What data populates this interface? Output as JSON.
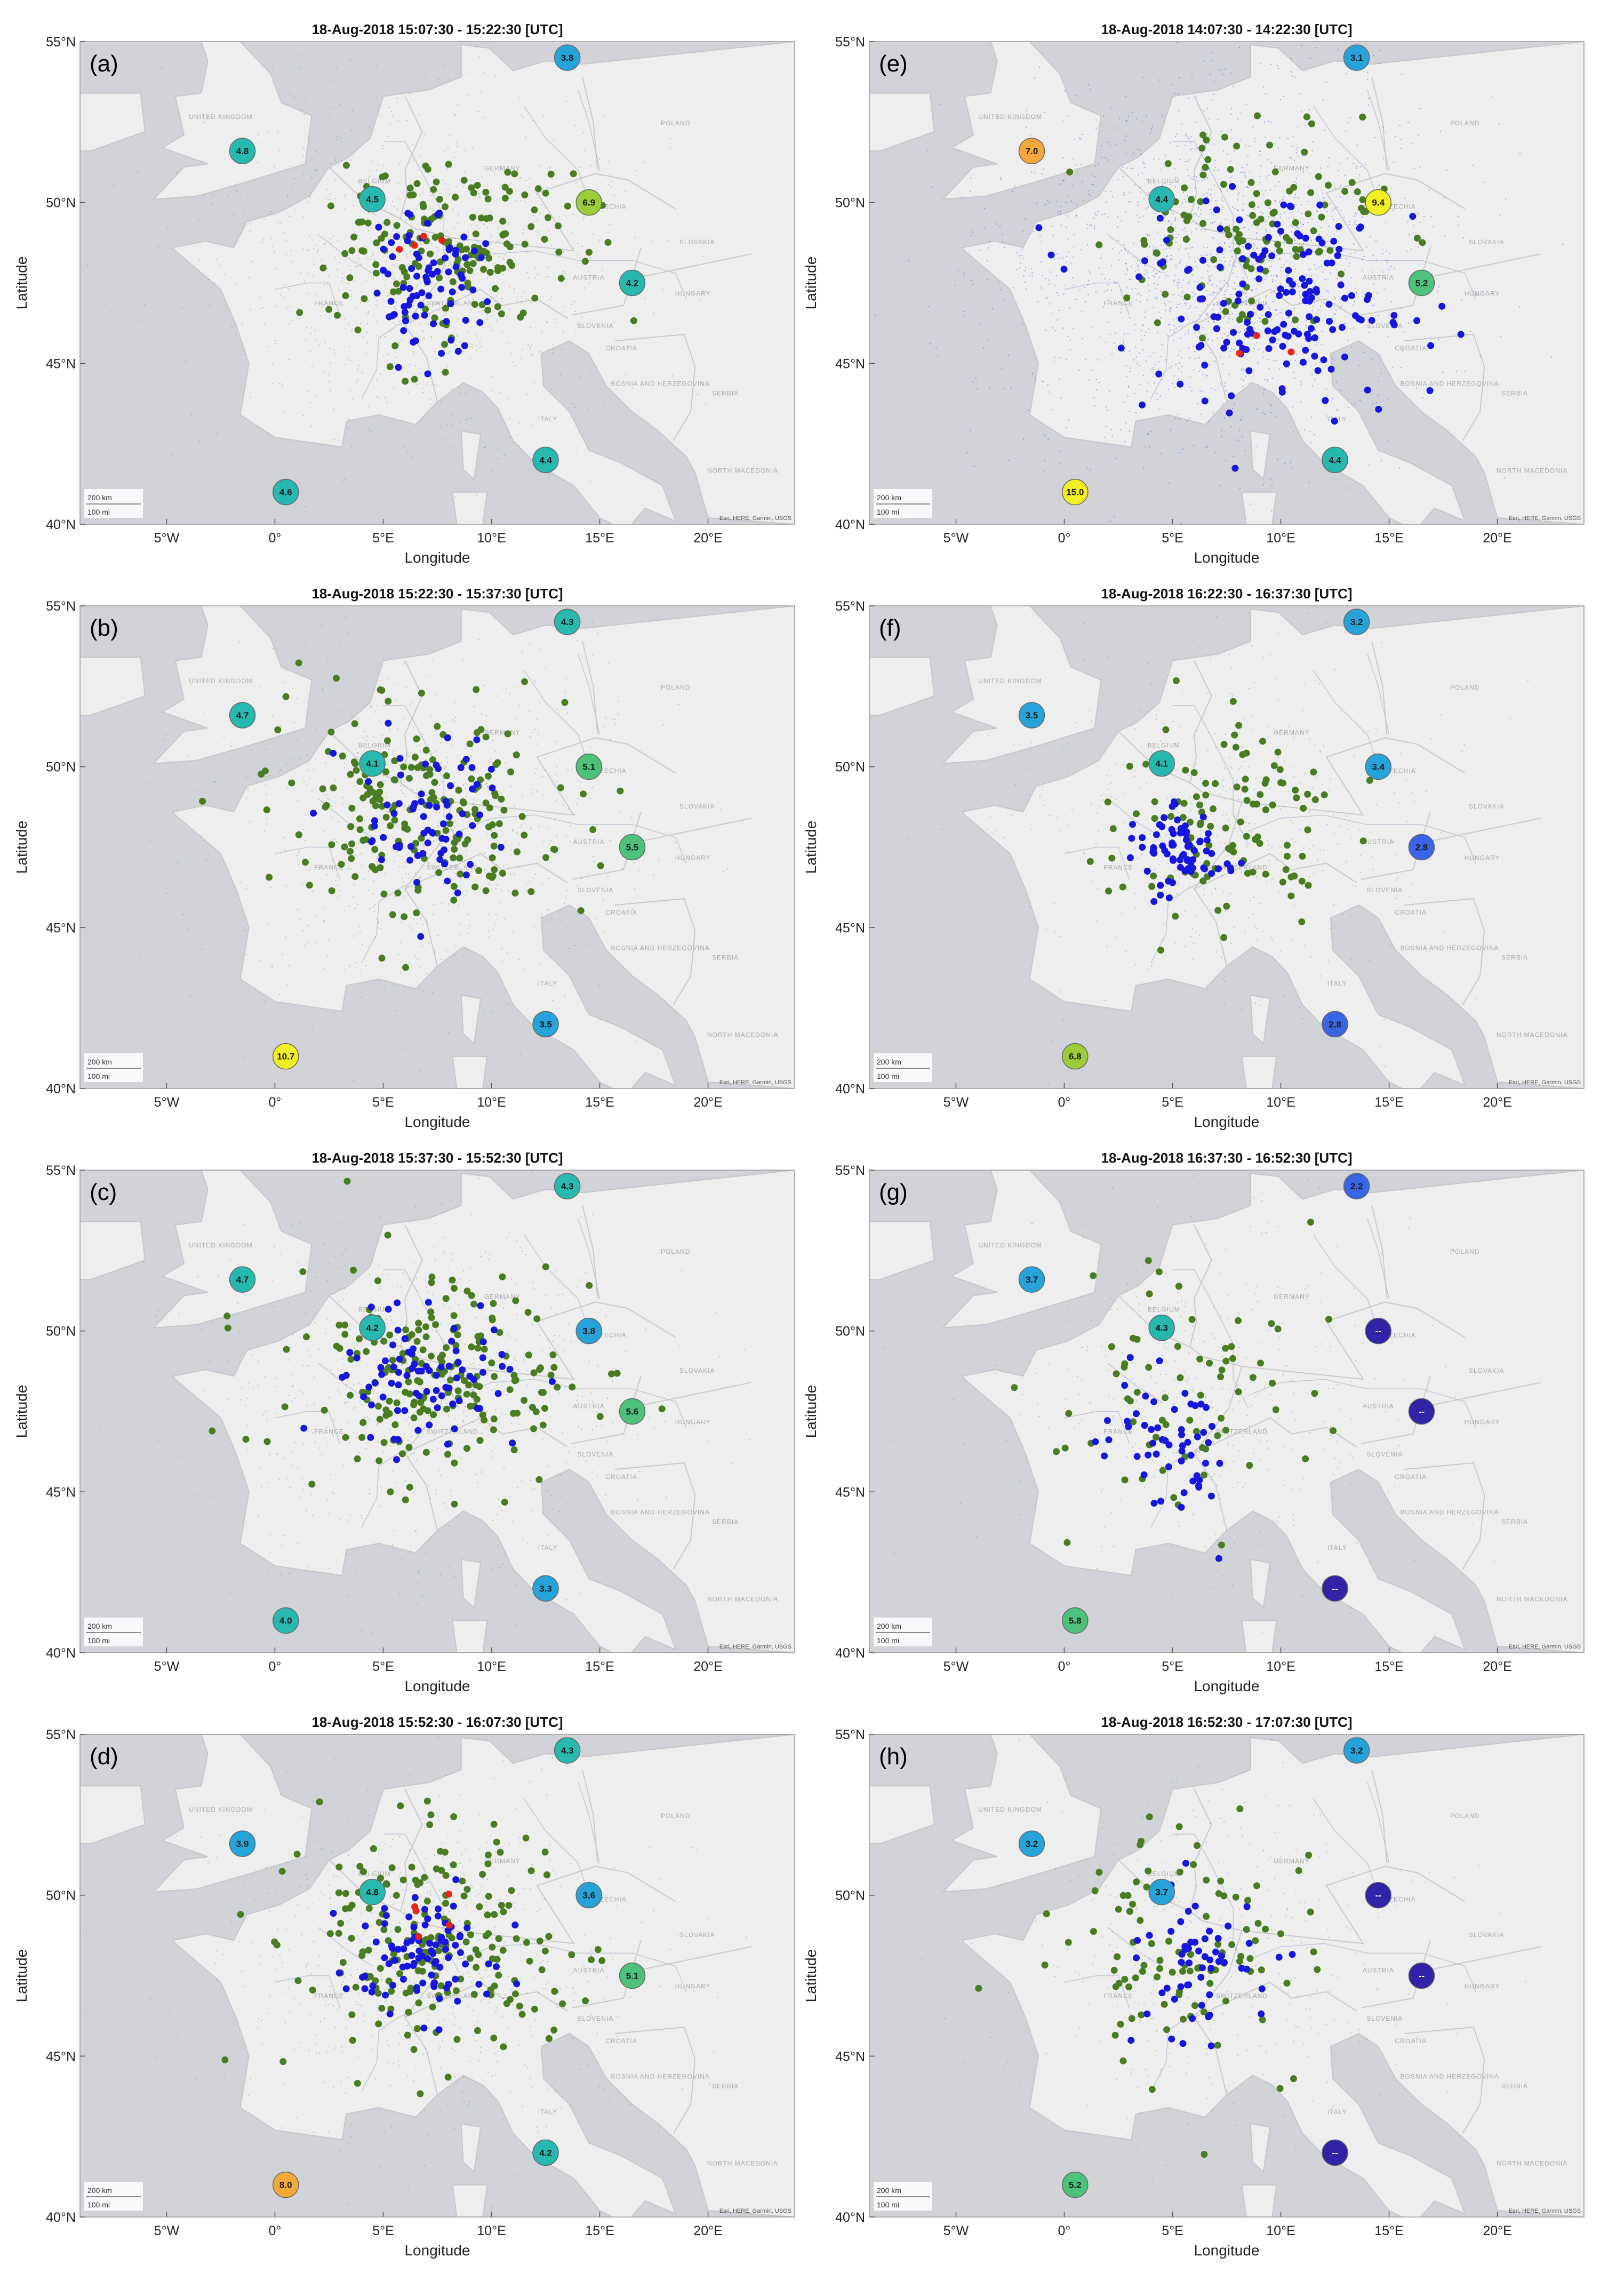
{
  "figure": {
    "x_axis_label": "Longitude",
    "y_axis_label": "Latitude",
    "x_ticks": [
      "5°W",
      "0°",
      "5°E",
      "10°E",
      "15°E",
      "20°E"
    ],
    "y_ticks": [
      "40°N",
      "45°N",
      "50°N",
      "55°N"
    ],
    "scale_bar": {
      "km": "200 km",
      "mi": "100 mi"
    },
    "attribution": "Esri, HERE, Garmin, USGS",
    "map_labels": [
      "POLAND",
      "GERMANY",
      "FRANCE",
      "SWITZERLAND",
      "ITALY",
      "SLOVENIA",
      "SERBIA",
      "BOSNIA AND HERZEGOVINA",
      "NORTH MACEDONIA",
      "CROATIA",
      "UNITED KINGDOM",
      "CZECHIA",
      "AUSTRIA",
      "HUNGARY",
      "BELGIUM",
      "SLOVAKIA"
    ],
    "bubble_palette": {
      "2": "#3a64e6",
      "3": "#26a3d9",
      "4": "#27b8b0",
      "5": "#4dc27a",
      "6": "#9ccc3a",
      "7": "#f5a93a",
      "9": "#f2ef22",
      "none": "#3023a6"
    },
    "colors": {
      "ocean": "#d2d3d9",
      "land": "#eeeeee",
      "green_dot": "#4a7d22",
      "blue_dot": "#1616dc",
      "red_dot": "#e8241b"
    }
  },
  "chart_data": [
    {
      "panel_label": "(a)",
      "title": "18-Aug-2018 15:07:30 - 15:22:30 [UTC]",
      "type": "scatter",
      "xlim": [
        -9,
        24
      ],
      "ylim": [
        40,
        55
      ],
      "bubbles": [
        {
          "lon": 13.5,
          "lat": 54.5,
          "label": "3.8"
        },
        {
          "lon": -1.5,
          "lat": 51.6,
          "label": "4.8"
        },
        {
          "lon": 4.5,
          "lat": 50.1,
          "label": "4.5"
        },
        {
          "lon": 14.5,
          "lat": 50.0,
          "label": "6.9"
        },
        {
          "lon": 16.5,
          "lat": 47.5,
          "label": "4.2"
        },
        {
          "lon": 12.5,
          "lat": 42.0,
          "label": "4.4"
        },
        {
          "lon": 0.5,
          "lat": 41.0,
          "label": "4.6"
        }
      ],
      "dot_counts": {
        "green": 170,
        "blue": 80,
        "red": 4
      },
      "dot_clusters": [
        {
          "color": "green",
          "lon": 8,
          "lat": 48.5,
          "spread_lon": 5,
          "spread_lat": 2.6
        },
        {
          "color": "blue",
          "lon": 7,
          "lat": 47.7,
          "spread_lon": 2.5,
          "spread_lat": 2
        },
        {
          "color": "red",
          "lon": 7.5,
          "lat": 48.6,
          "spread_lon": 1.2,
          "spread_lat": 0.3
        }
      ],
      "flash_density": 1.0
    },
    {
      "panel_label": "(e)",
      "title": "18-Aug-2018 14:07:30 - 14:22:30 [UTC]",
      "type": "scatter",
      "xlim": [
        -9,
        24
      ],
      "ylim": [
        40,
        55
      ],
      "bubbles": [
        {
          "lon": 13.5,
          "lat": 54.5,
          "label": "3.1"
        },
        {
          "lon": -1.5,
          "lat": 51.6,
          "label": "7.0"
        },
        {
          "lon": 4.5,
          "lat": 50.1,
          "label": "4.4"
        },
        {
          "lon": 14.5,
          "lat": 50.0,
          "label": "9.4"
        },
        {
          "lon": 16.5,
          "lat": 47.5,
          "label": "5.2"
        },
        {
          "lon": 12.5,
          "lat": 42.0,
          "label": "4.4"
        },
        {
          "lon": 0.5,
          "lat": 41.0,
          "label": "15.0"
        }
      ],
      "dot_counts": {
        "green": 120,
        "blue": 160,
        "red": 3
      },
      "dot_clusters": [
        {
          "color": "green",
          "lon": 9,
          "lat": 49,
          "spread_lon": 6,
          "spread_lat": 3
        },
        {
          "color": "blue",
          "lon": 10,
          "lat": 47,
          "spread_lon": 6,
          "spread_lat": 3
        },
        {
          "color": "red",
          "lon": 8,
          "lat": 45.3,
          "spread_lon": 3,
          "spread_lat": 0.5
        }
      ],
      "flash_density": 2.0
    },
    {
      "panel_label": "(b)",
      "title": "18-Aug-2018 15:22:30 - 15:37:30 [UTC]",
      "type": "scatter",
      "xlim": [
        -9,
        24
      ],
      "ylim": [
        40,
        55
      ],
      "bubbles": [
        {
          "lon": 13.5,
          "lat": 54.5,
          "label": "4.3"
        },
        {
          "lon": -1.5,
          "lat": 51.6,
          "label": "4.7"
        },
        {
          "lon": 4.5,
          "lat": 50.1,
          "label": "4.1"
        },
        {
          "lon": 14.5,
          "lat": 50.0,
          "label": "5.1"
        },
        {
          "lon": 16.5,
          "lat": 47.5,
          "label": "5.5"
        },
        {
          "lon": 12.5,
          "lat": 42.0,
          "label": "3.5"
        },
        {
          "lon": 0.5,
          "lat": 41.0,
          "label": "10.7"
        }
      ],
      "dot_counts": {
        "green": 200,
        "blue": 70,
        "red": 0
      },
      "dot_clusters": [
        {
          "color": "green",
          "lon": 7,
          "lat": 48.5,
          "spread_lon": 6,
          "spread_lat": 3
        },
        {
          "color": "blue",
          "lon": 7,
          "lat": 48.5,
          "spread_lon": 3,
          "spread_lat": 2
        }
      ],
      "flash_density": 0.8
    },
    {
      "panel_label": "(f)",
      "title": "18-Aug-2018 16:22:30 - 16:37:30 [UTC]",
      "type": "scatter",
      "xlim": [
        -9,
        24
      ],
      "ylim": [
        40,
        55
      ],
      "bubbles": [
        {
          "lon": 13.5,
          "lat": 54.5,
          "label": "3.2"
        },
        {
          "lon": -1.5,
          "lat": 51.6,
          "label": "3.5"
        },
        {
          "lon": 4.5,
          "lat": 50.1,
          "label": "4.1"
        },
        {
          "lon": 14.5,
          "lat": 50.0,
          "label": "3.4"
        },
        {
          "lon": 16.5,
          "lat": 47.5,
          "label": "2.8"
        },
        {
          "lon": 12.5,
          "lat": 42.0,
          "label": "2.8"
        },
        {
          "lon": 0.5,
          "lat": 41.0,
          "label": "6.8"
        }
      ],
      "dot_counts": {
        "green": 110,
        "blue": 70,
        "red": 0
      },
      "dot_clusters": [
        {
          "color": "green",
          "lon": 7,
          "lat": 48,
          "spread_lon": 5,
          "spread_lat": 3
        },
        {
          "color": "blue",
          "lon": 5.5,
          "lat": 47.5,
          "spread_lon": 2,
          "spread_lat": 1.5
        }
      ],
      "flash_density": 0.5
    },
    {
      "panel_label": "(c)",
      "title": "18-Aug-2018 15:37:30 - 15:52:30 [UTC]",
      "type": "scatter",
      "xlim": [
        -9,
        24
      ],
      "ylim": [
        40,
        55
      ],
      "bubbles": [
        {
          "lon": 13.5,
          "lat": 54.5,
          "label": "4.3"
        },
        {
          "lon": -1.5,
          "lat": 51.6,
          "label": "4.7"
        },
        {
          "lon": 4.5,
          "lat": 50.1,
          "label": "4.2"
        },
        {
          "lon": 14.5,
          "lat": 50.0,
          "label": "3.8"
        },
        {
          "lon": 16.5,
          "lat": 47.5,
          "label": "5.6"
        },
        {
          "lon": 12.5,
          "lat": 42.0,
          "label": "3.3"
        },
        {
          "lon": 0.5,
          "lat": 41.0,
          "label": "4.0"
        }
      ],
      "dot_counts": {
        "green": 200,
        "blue": 80,
        "red": 0
      },
      "dot_clusters": [
        {
          "color": "green",
          "lon": 7.5,
          "lat": 48.5,
          "spread_lon": 6,
          "spread_lat": 3
        },
        {
          "color": "blue",
          "lon": 7,
          "lat": 48.5,
          "spread_lon": 3.5,
          "spread_lat": 2
        }
      ],
      "flash_density": 0.7
    },
    {
      "panel_label": "(g)",
      "title": "18-Aug-2018 16:37:30 - 16:52:30 [UTC]",
      "type": "scatter",
      "xlim": [
        -9,
        24
      ],
      "ylim": [
        40,
        55
      ],
      "bubbles": [
        {
          "lon": 13.5,
          "lat": 54.5,
          "label": "2.2"
        },
        {
          "lon": -1.5,
          "lat": 51.6,
          "label": "3.7"
        },
        {
          "lon": 4.5,
          "lat": 50.1,
          "label": "4.3"
        },
        {
          "lon": 14.5,
          "lat": 50.0,
          "label": "--"
        },
        {
          "lon": 16.5,
          "lat": 47.5,
          "label": "--"
        },
        {
          "lon": 12.5,
          "lat": 42.0,
          "label": "--"
        },
        {
          "lon": 0.5,
          "lat": 41.0,
          "label": "5.8"
        }
      ],
      "dot_counts": {
        "green": 70,
        "blue": 55,
        "red": 0
      },
      "dot_clusters": [
        {
          "color": "green",
          "lon": 6,
          "lat": 48,
          "spread_lon": 5,
          "spread_lat": 3.5
        },
        {
          "color": "blue",
          "lon": 5,
          "lat": 46.5,
          "spread_lon": 2.5,
          "spread_lat": 2.5
        }
      ],
      "flash_density": 0.4
    },
    {
      "panel_label": "(d)",
      "title": "18-Aug-2018 15:52:30 - 16:07:30 [UTC]",
      "type": "scatter",
      "xlim": [
        -9,
        24
      ],
      "ylim": [
        40,
        55
      ],
      "bubbles": [
        {
          "lon": 13.5,
          "lat": 54.5,
          "label": "4.3"
        },
        {
          "lon": -1.5,
          "lat": 51.6,
          "label": "3.9"
        },
        {
          "lon": 4.5,
          "lat": 50.1,
          "label": "4.8"
        },
        {
          "lon": 14.5,
          "lat": 50.0,
          "label": "3.6"
        },
        {
          "lon": 16.5,
          "lat": 47.5,
          "label": "5.1"
        },
        {
          "lon": 12.5,
          "lat": 42.0,
          "label": "4.2"
        },
        {
          "lon": 0.5,
          "lat": 41.0,
          "label": "8.0"
        }
      ],
      "dot_counts": {
        "green": 200,
        "blue": 90,
        "red": 5
      },
      "dot_clusters": [
        {
          "color": "green",
          "lon": 7.5,
          "lat": 48.5,
          "spread_lon": 6,
          "spread_lat": 3
        },
        {
          "color": "blue",
          "lon": 6.5,
          "lat": 48,
          "spread_lon": 3,
          "spread_lat": 1.8
        },
        {
          "color": "red",
          "lon": 8,
          "lat": 49.5,
          "spread_lon": 1.5,
          "spread_lat": 1.2
        }
      ],
      "flash_density": 0.7
    },
    {
      "panel_label": "(h)",
      "title": "18-Aug-2018 16:52:30 - 17:07:30 [UTC]",
      "type": "scatter",
      "xlim": [
        -9,
        24
      ],
      "ylim": [
        40,
        55
      ],
      "bubbles": [
        {
          "lon": 13.5,
          "lat": 54.5,
          "label": "3.2"
        },
        {
          "lon": -1.5,
          "lat": 51.6,
          "label": "3.2"
        },
        {
          "lon": 4.5,
          "lat": 50.1,
          "label": "3.7"
        },
        {
          "lon": 14.5,
          "lat": 50.0,
          "label": "--"
        },
        {
          "lon": 16.5,
          "lat": 47.5,
          "label": "--"
        },
        {
          "lon": 12.5,
          "lat": 42.0,
          "label": "--"
        },
        {
          "lon": 0.5,
          "lat": 41.0,
          "label": "5.2"
        }
      ],
      "dot_counts": {
        "green": 100,
        "blue": 55,
        "red": 0
      },
      "dot_clusters": [
        {
          "color": "green",
          "lon": 6,
          "lat": 48.5,
          "spread_lon": 6,
          "spread_lat": 3.5
        },
        {
          "color": "blue",
          "lon": 6,
          "lat": 48,
          "spread_lon": 3,
          "spread_lat": 2.5
        }
      ],
      "flash_density": 0.4
    }
  ]
}
